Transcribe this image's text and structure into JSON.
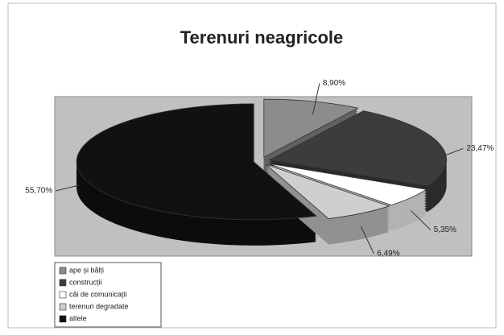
{
  "chart_data": {
    "type": "pie",
    "title": "Terenuri neagricole",
    "categories": [
      "ape și bălți",
      "construcții",
      "căi de comunicații",
      "terenuri degradate",
      "altele"
    ],
    "values": [
      8.9,
      23.47,
      5.35,
      6.49,
      55.7
    ],
    "value_labels": [
      "8,90%",
      "23,47%",
      "5,35%",
      "6,49%",
      "55,70%"
    ],
    "colors": [
      "#8c8c8c",
      "#3c3c3c",
      "#ffffff",
      "#cfcfcf",
      "#111111"
    ],
    "legend": "bottom-left"
  }
}
